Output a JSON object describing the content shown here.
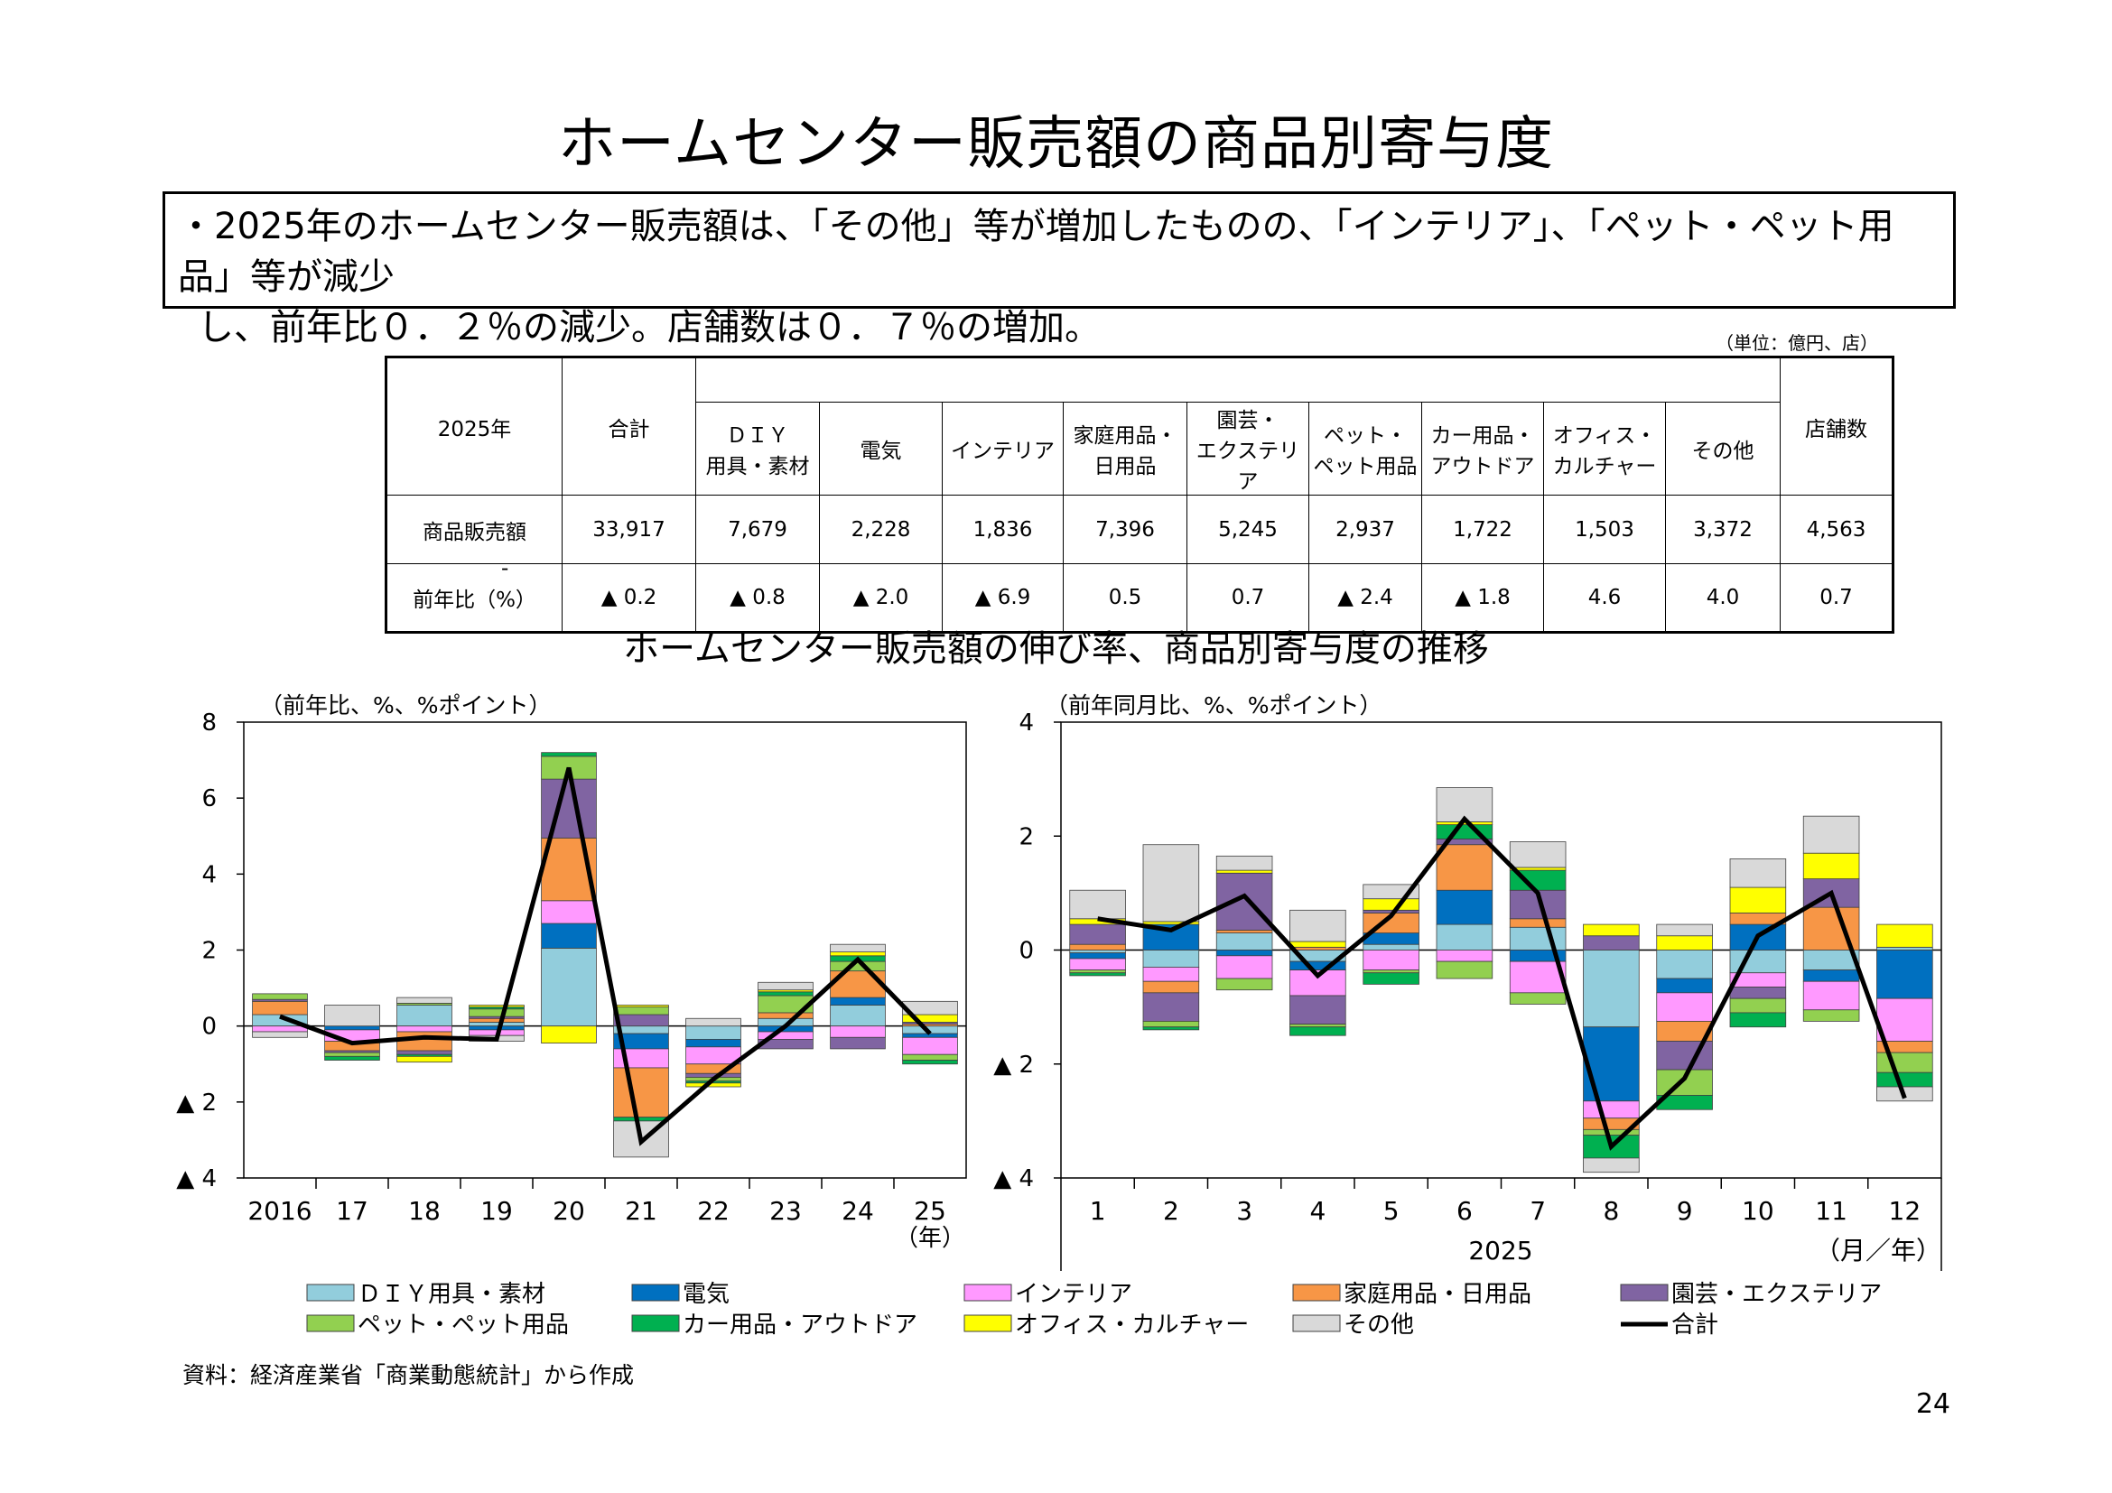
{
  "title": "ホームセンター販売額の商品別寄与度",
  "summary": {
    "line1": "・2025年のホームセンター販売額は、「その他」等が増加したものの、「インテリア」、「ペット・ペット用品」等が減少",
    "line2": "し、前年比０．２％の減少。店舗数は０．７％の増加。"
  },
  "table": {
    "unit": "（単位：億円、店）",
    "corner": "2025年",
    "headers": [
      {
        "l1": "合計",
        "l2": ""
      },
      {
        "l1": "ＤＩＹ",
        "l2": "用具・素材"
      },
      {
        "l1": "電気",
        "l2": ""
      },
      {
        "l1": "インテリア",
        "l2": ""
      },
      {
        "l1": "家庭用品・",
        "l2": "日用品"
      },
      {
        "l1": "園芸・",
        "l2": "エクステリア"
      },
      {
        "l1": "ペット・",
        "l2": "ペット用品"
      },
      {
        "l1": "カー用品・",
        "l2": "アウトドア"
      },
      {
        "l1": "オフィス・",
        "l2": "カルチャー"
      },
      {
        "l1": "その他",
        "l2": ""
      },
      {
        "l1": "店舗数",
        "l2": ""
      }
    ],
    "rows": [
      {
        "label": "商品販売額",
        "values": [
          "33,917",
          "7,679",
          "2,228",
          "1,836",
          "7,396",
          "5,245",
          "2,937",
          "1,722",
          "1,503",
          "3,372",
          "4,563"
        ]
      },
      {
        "label": "前年比（%）",
        "mark": "-",
        "values": [
          "▲ 0.2",
          "▲ 0.8",
          "▲ 2.0",
          "▲ 6.9",
          "0.5",
          "0.7",
          "▲ 2.4",
          "▲ 1.8",
          "4.6",
          "4.0",
          "0.7"
        ]
      }
    ]
  },
  "chart_section_title": "ホームセンター販売額の伸び率、商品別寄与度の推移",
  "colors": [
    "#92CDDC",
    "#0070C0",
    "#FF99FF",
    "#F79646",
    "#8064A2",
    "#92D050",
    "#00B050",
    "#FFFF00",
    "#D9D9D9"
  ],
  "chart_data": [
    {
      "type": "bar",
      "stacked": true,
      "note": "（前年比、%、%ポイント）",
      "categories": [
        "2016",
        "17",
        "18",
        "19",
        "20",
        "21",
        "22",
        "23",
        "24",
        "25"
      ],
      "x_unit": "（年）",
      "ylim": [
        -4,
        8
      ],
      "yticks": [
        8,
        6,
        4,
        2,
        0,
        -2,
        -4
      ],
      "ytick_labels": [
        "8",
        "6",
        "4",
        "2",
        "0",
        "▲ 2",
        "▲ 4"
      ],
      "series": [
        {
          "name": "ＤＩＹ用具・素材",
          "values": [
            0.3,
            0.0,
            0.55,
            0.1,
            2.05,
            -0.2,
            -0.35,
            0.2,
            0.55,
            -0.2
          ]
        },
        {
          "name": "電気",
          "values": [
            0.0,
            -0.1,
            0.0,
            -0.1,
            0.65,
            -0.4,
            -0.2,
            -0.15,
            0.2,
            -0.1
          ]
        },
        {
          "name": "インテリア",
          "values": [
            -0.15,
            -0.3,
            -0.15,
            -0.15,
            0.6,
            -0.5,
            -0.45,
            -0.2,
            -0.3,
            -0.45
          ]
        },
        {
          "name": "家庭用品・日用品",
          "values": [
            0.35,
            -0.25,
            -0.5,
            0.1,
            1.65,
            -1.3,
            -0.25,
            0.15,
            0.7,
            0.05
          ]
        },
        {
          "name": "園芸・エクステリア",
          "values": [
            0.05,
            -0.05,
            -0.1,
            0.05,
            1.55,
            0.3,
            -0.1,
            -0.25,
            -0.3,
            0.05
          ]
        },
        {
          "name": "ペット・ペット用品",
          "values": [
            0.15,
            -0.1,
            0.05,
            0.2,
            0.6,
            0.2,
            -0.1,
            0.45,
            0.25,
            -0.15
          ]
        },
        {
          "name": "カー用品・アウトドア",
          "values": [
            0.0,
            -0.1,
            -0.05,
            0.05,
            0.1,
            -0.1,
            -0.05,
            0.1,
            0.15,
            -0.1
          ]
        },
        {
          "name": "オフィス・カルチャー",
          "values": [
            0.0,
            0.0,
            -0.15,
            0.05,
            -0.45,
            0.05,
            -0.1,
            0.05,
            0.1,
            0.2
          ]
        },
        {
          "name": "その他",
          "values": [
            -0.15,
            0.55,
            0.15,
            -0.15,
            0.0,
            -0.95,
            0.2,
            0.2,
            0.2,
            0.35
          ]
        }
      ],
      "total": {
        "name": "合計",
        "values": [
          0.25,
          -0.45,
          -0.3,
          -0.35,
          6.8,
          -3.05,
          -1.4,
          0.0,
          1.75,
          -0.2
        ]
      }
    },
    {
      "type": "bar",
      "stacked": true,
      "note": "（前年同月比、%、%ポイント）",
      "categories": [
        "1",
        "2",
        "3",
        "4",
        "5",
        "6",
        "7",
        "8",
        "9",
        "10",
        "11",
        "12"
      ],
      "year_label": "2025",
      "x_unit": "（月／年）",
      "ylim": [
        -4,
        4
      ],
      "yticks": [
        4,
        2,
        0,
        -2,
        -4
      ],
      "ytick_labels": [
        "4",
        "2",
        "0",
        "▲ 2",
        "▲ 4"
      ],
      "series": [
        {
          "name": "ＤＩＹ用具・素材",
          "values": [
            -0.05,
            -0.3,
            0.3,
            -0.2,
            0.1,
            0.45,
            0.4,
            -1.35,
            -0.5,
            -0.4,
            -0.35,
            0.05
          ]
        },
        {
          "name": "電気",
          "values": [
            -0.1,
            0.45,
            -0.1,
            -0.15,
            0.2,
            0.6,
            -0.2,
            -1.3,
            -0.25,
            0.45,
            -0.2,
            -0.85
          ]
        },
        {
          "name": "インテリア",
          "values": [
            -0.2,
            -0.25,
            -0.4,
            -0.45,
            -0.35,
            -0.2,
            -0.55,
            -0.3,
            -0.5,
            -0.25,
            -0.5,
            -0.75
          ]
        },
        {
          "name": "家庭用品・日用品",
          "values": [
            0.1,
            -0.2,
            0.05,
            0.05,
            0.35,
            0.8,
            0.15,
            -0.2,
            -0.35,
            0.2,
            0.75,
            -0.2
          ]
        },
        {
          "name": "園芸・エクステリア",
          "values": [
            0.35,
            -0.5,
            1.0,
            -0.5,
            0.05,
            0.1,
            0.5,
            0.25,
            -0.5,
            -0.2,
            0.5,
            0.0
          ]
        },
        {
          "name": "ペット・ペット用品",
          "values": [
            -0.05,
            -0.1,
            -0.2,
            -0.05,
            -0.05,
            -0.3,
            -0.2,
            -0.1,
            -0.45,
            -0.25,
            -0.2,
            -0.35
          ]
        },
        {
          "name": "カー用品・アウトドア",
          "values": [
            -0.05,
            -0.05,
            0.0,
            -0.15,
            -0.2,
            0.25,
            0.35,
            -0.4,
            -0.25,
            -0.25,
            0.0,
            -0.25
          ]
        },
        {
          "name": "オフィス・カルチャー",
          "values": [
            0.1,
            0.05,
            0.05,
            0.1,
            0.2,
            0.05,
            0.05,
            0.2,
            0.25,
            0.45,
            0.45,
            0.4
          ]
        },
        {
          "name": "その他",
          "values": [
            0.5,
            1.35,
            0.25,
            0.55,
            0.25,
            0.6,
            0.45,
            -0.25,
            0.2,
            0.5,
            0.65,
            -0.25
          ]
        }
      ],
      "total": {
        "name": "合計",
        "values": [
          0.55,
          0.35,
          0.95,
          -0.45,
          0.6,
          2.3,
          1.0,
          -3.45,
          -2.25,
          0.25,
          1.0,
          -2.6
        ]
      }
    }
  ],
  "legend": [
    "ＤＩＹ用具・素材",
    "電気",
    "インテリア",
    "家庭用品・日用品",
    "園芸・エクステリア",
    "ペット・ペット用品",
    "カー用品・アウトドア",
    "オフィス・カルチャー",
    "その他",
    "合計"
  ],
  "source": "資料：経済産業省「商業動態統計」から作成",
  "page_number": "24"
}
